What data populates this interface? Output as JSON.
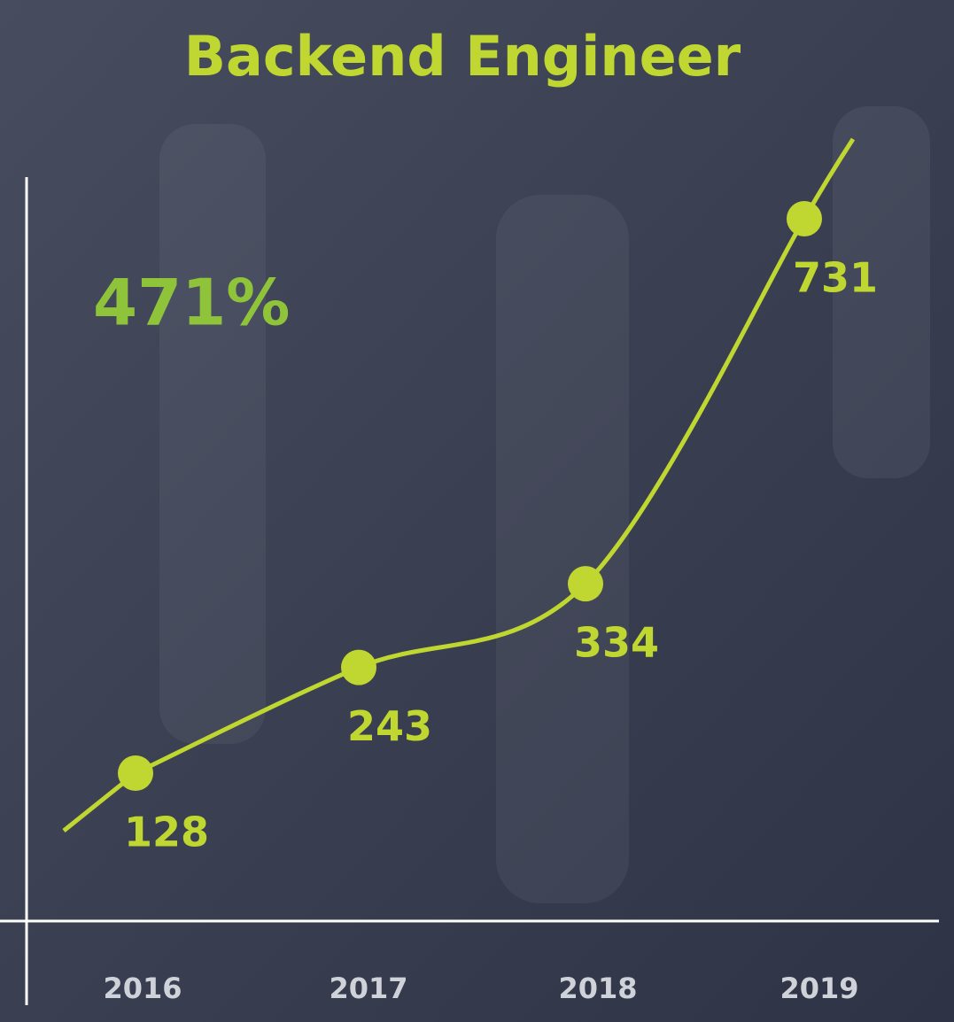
{
  "chart_data": {
    "type": "line",
    "title": "Backend Engineer",
    "annotation": "471%",
    "categories": [
      "2016",
      "2017",
      "2018",
      "2019"
    ],
    "values": [
      128,
      243,
      334,
      731
    ],
    "color": "#bfd730"
  }
}
